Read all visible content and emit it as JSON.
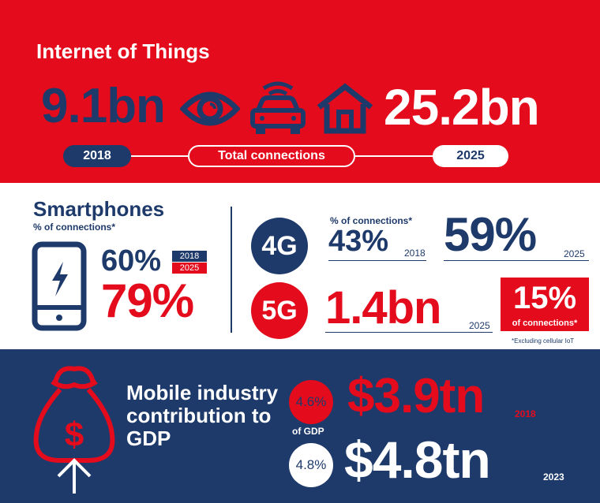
{
  "iot": {
    "title": "Internet of Things",
    "value_2018": "9.1bn",
    "value_2025": "25.2bn",
    "year_start": "2018",
    "label": "Total connections",
    "year_end": "2025"
  },
  "smartphones": {
    "title": "Smartphones",
    "subtitle": "% of connections*",
    "value_2018": "60%",
    "value_2025": "79%",
    "year_a": "2018",
    "year_b": "2025"
  },
  "g4": {
    "badge": "4G",
    "label": "% of connections*",
    "value_2018": "43%",
    "year_2018": "2018",
    "value_2025": "59%",
    "year_2025": "2025"
  },
  "g5": {
    "badge": "5G",
    "value": "1.4bn",
    "year": "2025",
    "pct": "15%",
    "pct_label": "of connections*",
    "note": "*Excluding cellular IoT"
  },
  "gdp": {
    "title": "Mobile industry contribution to GDP",
    "pct_2018": "4.6%",
    "of_gdp": "of GDP",
    "pct_2023": "4.8%",
    "value_2018": "$3.9tn",
    "year_2018": "2018",
    "value_2023": "$4.8tn",
    "year_2023": "2023"
  },
  "colors": {
    "red": "#e30b1c",
    "navy": "#1e3a6b",
    "white": "#ffffff"
  },
  "icons": [
    "eye-icon",
    "connected-car-icon",
    "home-icon",
    "smartphone-bolt-icon",
    "money-bag-dollar-icon",
    "arrow-up-icon"
  ]
}
